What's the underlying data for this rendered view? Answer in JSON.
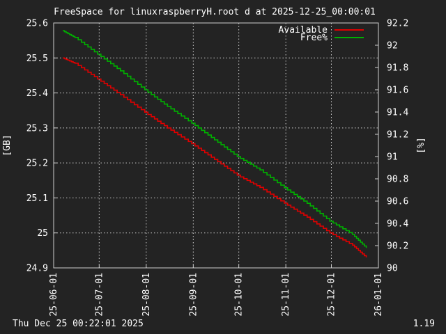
{
  "colors": {
    "background": "#232323",
    "text": "#ffffff",
    "grid": "#cfcfcf",
    "available": "#e00000",
    "free_pct": "#00b000"
  },
  "footer": {
    "timestamp": "Thu Dec 25 00:22:01 2025",
    "version": "1.19"
  },
  "chart_data": {
    "type": "line",
    "title": "FreeSpace for linuxraspberryH.root d at 2025-12-25_00:00:01",
    "ylabel": "[GB]",
    "y2label": "[%]",
    "xlim": [
      "2025-06-01",
      "2026-01-01"
    ],
    "ylim": [
      24.9,
      25.6
    ],
    "y2lim": [
      90.0,
      92.2
    ],
    "grid": true,
    "legend_position": "top-right",
    "x_ticks": [
      "25-06-01",
      "25-07-01",
      "25-08-01",
      "25-09-01",
      "25-10-01",
      "25-11-01",
      "25-12-01",
      "26-01-01"
    ],
    "y_ticks": [
      "24.9",
      "25",
      "25.1",
      "25.2",
      "25.3",
      "25.4",
      "25.5",
      "25.6"
    ],
    "y2_ticks": [
      "90",
      "90.2",
      "90.4",
      "90.6",
      "90.8",
      "91",
      "91.2",
      "91.4",
      "91.6",
      "91.8",
      "92",
      "92.2"
    ],
    "x": [
      "2025-06-07",
      "2025-06-15",
      "2025-06-30",
      "2025-07-15",
      "2025-07-31",
      "2025-08-15",
      "2025-08-31",
      "2025-09-15",
      "2025-09-30",
      "2025-10-15",
      "2025-10-31",
      "2025-11-15",
      "2025-11-30",
      "2025-12-15",
      "2025-12-24"
    ],
    "series": [
      {
        "name": "Available",
        "axis": "left",
        "color": "#e00000",
        "values": [
          25.5,
          25.485,
          25.44,
          25.395,
          25.345,
          25.3,
          25.255,
          25.21,
          25.165,
          25.13,
          25.085,
          25.045,
          25.0,
          24.965,
          24.93
        ]
      },
      {
        "name": "Free%",
        "axis": "right",
        "color": "#00b000",
        "values": [
          92.13,
          92.07,
          91.92,
          91.77,
          91.6,
          91.45,
          91.3,
          91.15,
          91.0,
          90.88,
          90.72,
          90.58,
          90.42,
          90.3,
          90.18
        ]
      }
    ]
  }
}
